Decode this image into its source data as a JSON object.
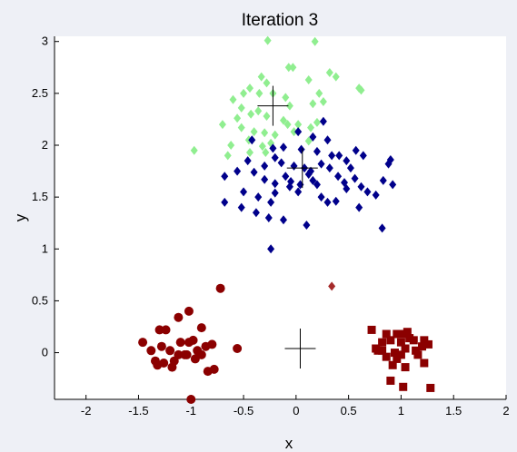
{
  "chart_data": {
    "type": "scatter",
    "title": "Iteration 3",
    "xlabel": "x",
    "ylabel": "y",
    "xlim": [
      -2.3,
      2.0
    ],
    "ylim": [
      -0.45,
      3.05
    ],
    "xticks": [
      "-2",
      "-1.5",
      "-1",
      "-0.5",
      "0",
      "0.5",
      "1",
      "1.5",
      "2"
    ],
    "yticks": [
      "0",
      "0.5",
      "1",
      "1.5",
      "2",
      "2.5",
      "3"
    ],
    "grid": false,
    "series": [
      {
        "marker": "diamond",
        "color": "#90ee90",
        "points": [
          [
            -0.27,
            3.01
          ],
          [
            0.18,
            3.0
          ],
          [
            -0.07,
            2.75
          ],
          [
            -0.03,
            2.75
          ],
          [
            -0.33,
            2.66
          ],
          [
            -0.28,
            2.6
          ],
          [
            0.32,
            2.7
          ],
          [
            0.38,
            2.66
          ],
          [
            0.12,
            2.63
          ],
          [
            0.6,
            2.55
          ],
          [
            0.62,
            2.53
          ],
          [
            -0.5,
            2.5
          ],
          [
            -0.44,
            2.55
          ],
          [
            -0.6,
            2.44
          ],
          [
            -0.52,
            2.36
          ],
          [
            -0.35,
            2.5
          ],
          [
            -0.22,
            2.5
          ],
          [
            -0.1,
            2.46
          ],
          [
            -0.06,
            2.38
          ],
          [
            0.22,
            2.5
          ],
          [
            0.26,
            2.42
          ],
          [
            0.16,
            2.4
          ],
          [
            -0.43,
            2.3
          ],
          [
            -0.56,
            2.26
          ],
          [
            -0.36,
            2.33
          ],
          [
            -0.28,
            2.28
          ],
          [
            -0.12,
            2.24
          ],
          [
            -0.08,
            2.2
          ],
          [
            0.02,
            2.2
          ],
          [
            0.14,
            2.17
          ],
          [
            0.2,
            2.22
          ],
          [
            -0.7,
            2.2
          ],
          [
            -0.52,
            2.17
          ],
          [
            -0.4,
            2.13
          ],
          [
            -0.3,
            2.12
          ],
          [
            -0.2,
            2.1
          ],
          [
            -0.62,
            2.0
          ],
          [
            -0.45,
            2.05
          ],
          [
            -0.32,
            1.99
          ],
          [
            -0.44,
            1.93
          ],
          [
            -0.29,
            1.93
          ],
          [
            -0.02,
            2.13
          ],
          [
            0.12,
            2.04
          ],
          [
            -0.97,
            1.95
          ],
          [
            -0.65,
            1.9
          ],
          [
            -0.24,
            2.02
          ]
        ]
      },
      {
        "marker": "diamond",
        "color": "#00008b",
        "points": [
          [
            0.26,
            2.23
          ],
          [
            0.02,
            2.13
          ],
          [
            0.16,
            2.08
          ],
          [
            0.3,
            2.05
          ],
          [
            -0.42,
            2.05
          ],
          [
            -0.22,
            1.97
          ],
          [
            -0.12,
            1.98
          ],
          [
            0.05,
            1.96
          ],
          [
            0.2,
            1.94
          ],
          [
            0.34,
            1.9
          ],
          [
            0.41,
            1.9
          ],
          [
            0.57,
            1.95
          ],
          [
            0.64,
            1.9
          ],
          [
            0.9,
            1.86
          ],
          [
            0.88,
            1.82
          ],
          [
            -0.46,
            1.85
          ],
          [
            -0.3,
            1.8
          ],
          [
            -0.2,
            1.88
          ],
          [
            -0.14,
            1.83
          ],
          [
            -0.02,
            1.8
          ],
          [
            0.08,
            1.78
          ],
          [
            0.14,
            1.75
          ],
          [
            0.24,
            1.82
          ],
          [
            0.32,
            1.78
          ],
          [
            0.48,
            1.85
          ],
          [
            0.52,
            1.78
          ],
          [
            -0.68,
            1.7
          ],
          [
            -0.56,
            1.75
          ],
          [
            -0.4,
            1.74
          ],
          [
            -0.3,
            1.67
          ],
          [
            -0.2,
            1.63
          ],
          [
            -0.1,
            1.7
          ],
          [
            -0.05,
            1.65
          ],
          [
            0.04,
            1.62
          ],
          [
            0.12,
            1.72
          ],
          [
            0.16,
            1.66
          ],
          [
            0.2,
            1.62
          ],
          [
            0.4,
            1.7
          ],
          [
            0.46,
            1.64
          ],
          [
            0.56,
            1.68
          ],
          [
            0.62,
            1.6
          ],
          [
            0.83,
            1.66
          ],
          [
            0.92,
            1.62
          ],
          [
            -0.5,
            1.55
          ],
          [
            -0.36,
            1.5
          ],
          [
            -0.2,
            1.54
          ],
          [
            -0.06,
            1.6
          ],
          [
            0.02,
            1.55
          ],
          [
            0.24,
            1.5
          ],
          [
            0.3,
            1.45
          ],
          [
            0.48,
            1.58
          ],
          [
            0.68,
            1.55
          ],
          [
            0.76,
            1.52
          ],
          [
            -0.68,
            1.45
          ],
          [
            -0.52,
            1.4
          ],
          [
            -0.38,
            1.35
          ],
          [
            -0.26,
            1.3
          ],
          [
            -0.24,
            1.45
          ],
          [
            0.6,
            1.4
          ],
          [
            0.1,
            1.23
          ],
          [
            -0.24,
            1.0
          ],
          [
            0.82,
            1.2
          ],
          [
            0.38,
            1.46
          ],
          [
            -0.12,
            1.28
          ]
        ]
      },
      {
        "marker": "diamond",
        "color": "#a52a2a",
        "points": [
          [
            0.34,
            0.64
          ]
        ]
      },
      {
        "marker": "circle",
        "color": "#8b0000",
        "points": [
          [
            -0.72,
            0.62
          ],
          [
            -1.02,
            0.4
          ],
          [
            -1.12,
            0.34
          ],
          [
            -1.3,
            0.22
          ],
          [
            -1.24,
            0.22
          ],
          [
            -0.9,
            0.24
          ],
          [
            -0.98,
            0.12
          ],
          [
            -1.1,
            0.1
          ],
          [
            -1.02,
            0.1
          ],
          [
            -0.86,
            0.06
          ],
          [
            -1.46,
            0.1
          ],
          [
            -1.38,
            0.02
          ],
          [
            -1.28,
            0.06
          ],
          [
            -1.2,
            0.02
          ],
          [
            -1.04,
            -0.02
          ],
          [
            -0.94,
            0.02
          ],
          [
            -0.8,
            0.08
          ],
          [
            -0.56,
            0.04
          ],
          [
            -1.34,
            -0.08
          ],
          [
            -1.26,
            -0.1
          ],
          [
            -1.16,
            -0.08
          ],
          [
            -1.12,
            -0.02
          ],
          [
            -1.06,
            -0.02
          ],
          [
            -0.96,
            -0.06
          ],
          [
            -0.9,
            -0.02
          ],
          [
            -1.32,
            -0.12
          ],
          [
            -1.18,
            -0.14
          ],
          [
            -0.84,
            -0.18
          ],
          [
            -0.78,
            -0.16
          ],
          [
            -1.0,
            -0.45
          ]
        ]
      },
      {
        "marker": "square",
        "color": "#8b0000",
        "points": [
          [
            0.72,
            0.22
          ],
          [
            0.86,
            0.18
          ],
          [
            0.96,
            0.18
          ],
          [
            1.02,
            0.18
          ],
          [
            1.06,
            0.2
          ],
          [
            1.12,
            0.12
          ],
          [
            0.82,
            0.1
          ],
          [
            0.9,
            0.12
          ],
          [
            1.0,
            0.1
          ],
          [
            1.08,
            0.14
          ],
          [
            1.22,
            0.12
          ],
          [
            1.26,
            0.08
          ],
          [
            1.2,
            0.06
          ],
          [
            0.76,
            0.04
          ],
          [
            0.82,
            0.02
          ],
          [
            0.94,
            0.0
          ],
          [
            1.04,
            0.04
          ],
          [
            1.14,
            0.02
          ],
          [
            0.86,
            -0.04
          ],
          [
            0.96,
            -0.06
          ],
          [
            1.0,
            -0.02
          ],
          [
            1.16,
            -0.02
          ],
          [
            0.92,
            -0.12
          ],
          [
            1.22,
            -0.1
          ],
          [
            0.78,
            0.02
          ],
          [
            1.04,
            -0.14
          ],
          [
            0.9,
            -0.27
          ],
          [
            1.02,
            -0.33
          ],
          [
            1.28,
            -0.34
          ]
        ]
      },
      {
        "marker": "plus",
        "color": "#000000",
        "points": [
          [
            -0.22,
            2.38
          ],
          [
            0.06,
            1.78
          ],
          [
            0.04,
            0.04
          ]
        ]
      }
    ]
  }
}
